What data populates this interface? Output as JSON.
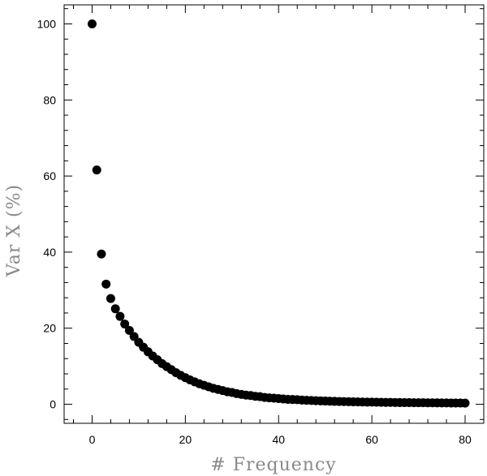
{
  "chart_data": {
    "type": "scatter",
    "title": "",
    "xlabel": "# Frequency",
    "ylabel": "Var X (%)",
    "xlim": [
      -6,
      84
    ],
    "ylim": [
      -5,
      105
    ],
    "xticks": [
      0,
      20,
      40,
      60,
      80
    ],
    "yticks": [
      0,
      20,
      40,
      60,
      80,
      100
    ],
    "xtick_labels": [
      "0",
      "20",
      "40",
      "60",
      "80"
    ],
    "ytick_labels": [
      "0",
      "20",
      "40",
      "60",
      "80",
      "100"
    ],
    "grid": false,
    "legend": false,
    "marker_color": "#000000",
    "series": [
      {
        "x": [
          0,
          1,
          2,
          3,
          4,
          5,
          6,
          7,
          8,
          9,
          10,
          11,
          12,
          13,
          14,
          15,
          16,
          17,
          18,
          19,
          20,
          21,
          22,
          23,
          24,
          25,
          26,
          27,
          28,
          29,
          30,
          31,
          32,
          33,
          34,
          35,
          36,
          37,
          38,
          39,
          40,
          41,
          42,
          43,
          44,
          45,
          46,
          47,
          48,
          49,
          50,
          51,
          52,
          53,
          54,
          55,
          56,
          57,
          58,
          59,
          60,
          61,
          62,
          63,
          64,
          65,
          66,
          67,
          68,
          69,
          70,
          71,
          72,
          73,
          74,
          75,
          76,
          77,
          78,
          79,
          80
        ],
        "y": [
          100,
          61.6,
          39.5,
          31.6,
          27.8,
          25.1,
          23.1,
          21.1,
          19.4,
          17.8,
          16.3,
          15.0,
          13.8,
          12.7,
          11.7,
          10.7,
          9.9,
          9.1,
          8.3,
          7.6,
          7.0,
          6.4,
          5.9,
          5.4,
          5.0,
          4.6,
          4.2,
          3.9,
          3.6,
          3.3,
          3.1,
          2.8,
          2.6,
          2.4,
          2.3,
          2.1,
          2.0,
          1.8,
          1.7,
          1.6,
          1.5,
          1.4,
          1.3,
          1.25,
          1.2,
          1.1,
          1.05,
          1.0,
          0.95,
          0.9,
          0.85,
          0.8,
          0.77,
          0.74,
          0.71,
          0.68,
          0.65,
          0.62,
          0.6,
          0.58,
          0.56,
          0.54,
          0.52,
          0.5,
          0.48,
          0.46,
          0.45,
          0.44,
          0.43,
          0.42,
          0.41,
          0.4,
          0.39,
          0.38,
          0.37,
          0.36,
          0.35,
          0.34,
          0.33,
          0.32,
          0.31
        ]
      }
    ]
  }
}
